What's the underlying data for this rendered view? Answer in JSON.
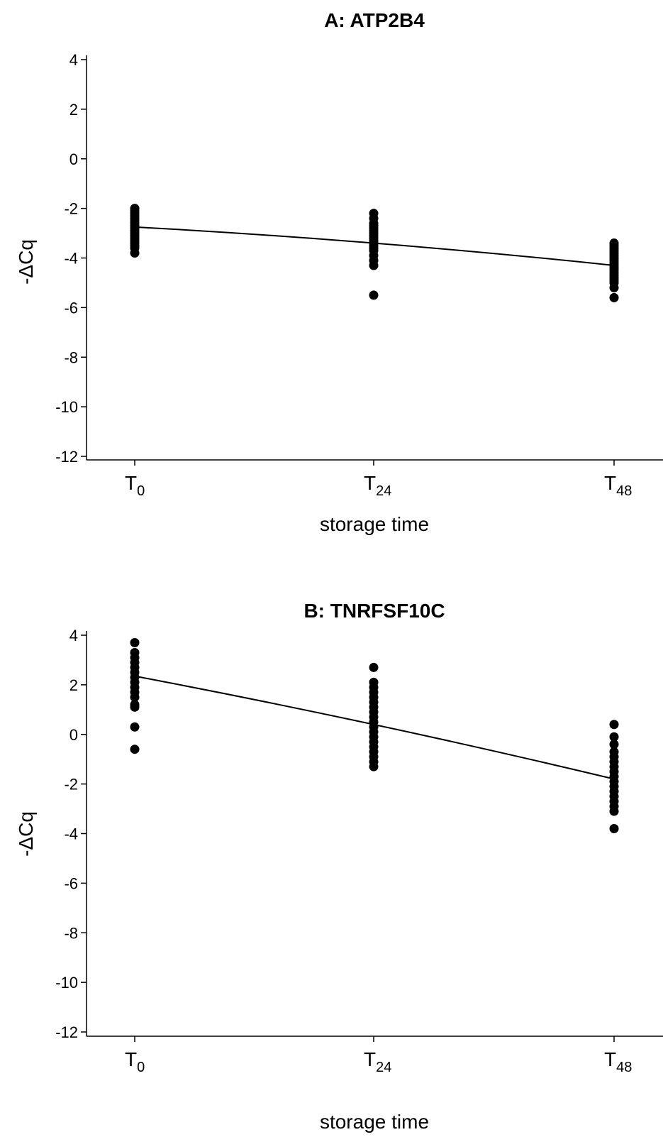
{
  "chart_data": [
    {
      "type": "scatter",
      "title": "A: ATP2B4",
      "xlabel": "storage time",
      "ylabel": "-ΔCq",
      "categories": [
        {
          "main": "T",
          "sub": "0"
        },
        {
          "main": "T",
          "sub": "24"
        },
        {
          "main": "T",
          "sub": "48"
        }
      ],
      "ylim": [
        -12,
        4
      ],
      "yticks": [
        4,
        2,
        0,
        -2,
        -4,
        -6,
        -8,
        -10,
        -12
      ],
      "series": [
        {
          "category": 0,
          "values": [
            -2.0,
            -2.1,
            -2.2,
            -2.3,
            -2.4,
            -2.5,
            -2.6,
            -2.7,
            -2.8,
            -2.9,
            -3.0,
            -3.1,
            -3.2,
            -3.3,
            -3.4,
            -3.5,
            -3.6,
            -3.8
          ]
        },
        {
          "category": 1,
          "values": [
            -2.2,
            -2.4,
            -2.6,
            -2.7,
            -2.8,
            -2.9,
            -3.0,
            -3.1,
            -3.2,
            -3.3,
            -3.4,
            -3.5,
            -3.6,
            -3.7,
            -3.9,
            -4.1,
            -4.3,
            -5.5
          ]
        },
        {
          "category": 2,
          "values": [
            -3.4,
            -3.5,
            -3.6,
            -3.7,
            -3.8,
            -3.9,
            -4.0,
            -4.1,
            -4.2,
            -4.3,
            -4.4,
            -4.5,
            -4.6,
            -4.7,
            -4.8,
            -4.9,
            -5.0,
            -5.2,
            -5.6
          ]
        }
      ],
      "fit": [
        -2.75,
        -3.4,
        -4.3
      ]
    },
    {
      "type": "scatter",
      "title": "B: TNRFSF10C",
      "xlabel": "storage time",
      "ylabel": "-ΔCq",
      "categories": [
        {
          "main": "T",
          "sub": "0"
        },
        {
          "main": "T",
          "sub": "24"
        },
        {
          "main": "T",
          "sub": "48"
        }
      ],
      "ylim": [
        -12,
        4
      ],
      "yticks": [
        4,
        2,
        0,
        -2,
        -4,
        -6,
        -8,
        -10,
        -12
      ],
      "series": [
        {
          "category": 0,
          "values": [
            3.7,
            3.3,
            3.1,
            2.9,
            2.7,
            2.5,
            2.3,
            2.1,
            1.9,
            1.7,
            1.5,
            1.2,
            1.1,
            0.3,
            -0.6
          ]
        },
        {
          "category": 1,
          "values": [
            2.7,
            2.1,
            1.9,
            1.7,
            1.5,
            1.3,
            1.1,
            0.9,
            0.7,
            0.5,
            0.3,
            0.1,
            -0.1,
            -0.3,
            -0.5,
            -0.7,
            -0.9,
            -1.1,
            -1.3
          ]
        },
        {
          "category": 2,
          "values": [
            0.4,
            -0.1,
            -0.4,
            -0.7,
            -0.9,
            -1.1,
            -1.3,
            -1.5,
            -1.7,
            -1.9,
            -2.1,
            -2.3,
            -2.5,
            -2.7,
            -2.9,
            -3.1,
            -3.8
          ]
        }
      ],
      "fit": [
        2.35,
        0.4,
        -1.8
      ]
    }
  ]
}
